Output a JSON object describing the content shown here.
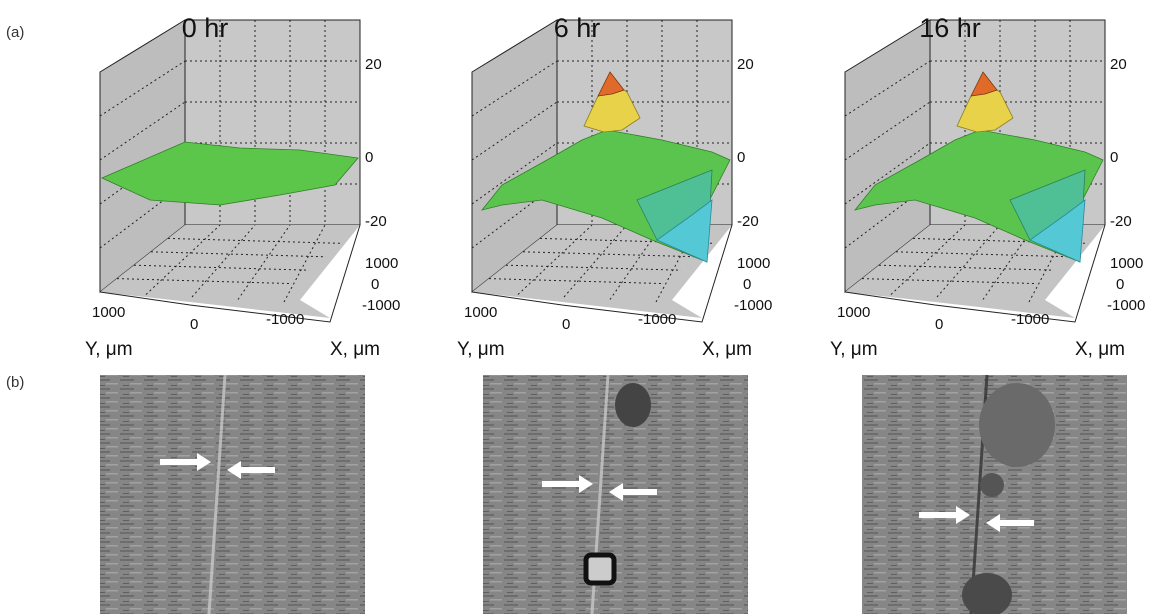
{
  "labels": {
    "a": "(a)",
    "b": "(b)"
  },
  "panels": [
    {
      "title": "0 hr",
      "z_ticks": [
        20,
        0,
        -20
      ],
      "x_ticks": [
        1000,
        0,
        -1000
      ],
      "y_ticks": [
        1000,
        0,
        -1000
      ],
      "y_label": "Y, μm",
      "x_label": "X, μm"
    },
    {
      "title": "6 hr",
      "z_ticks": [
        20,
        0,
        -20
      ],
      "x_ticks": [
        1000,
        0,
        -1000
      ],
      "y_ticks": [
        1000,
        0,
        -1000
      ],
      "y_label": "Y, μm",
      "x_label": "X, μm"
    },
    {
      "title": "16 hr",
      "z_ticks": [
        20,
        0,
        -20
      ],
      "x_ticks": [
        1000,
        0,
        -1000
      ],
      "y_ticks": [
        1000,
        0,
        -1000
      ],
      "y_label": "Y, μm",
      "x_label": "X, μm"
    }
  ]
}
